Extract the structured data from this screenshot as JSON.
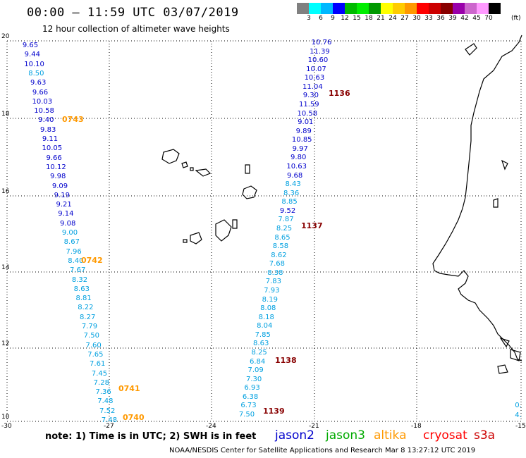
{
  "header": {
    "title": "00:00 – 11:59 UTC 03/07/2019",
    "subtitle": "12 hour collection of altimeter wave heights"
  },
  "colorbar": {
    "colors": [
      "#808080",
      "#00ffff",
      "#00b8ff",
      "#0000ff",
      "#00bb00",
      "#00ee00",
      "#009900",
      "#ffff00",
      "#ffcc00",
      "#ff9900",
      "#ff0000",
      "#cc0000",
      "#880000",
      "#9900aa",
      "#cc66cc",
      "#ff99ff",
      "#000000"
    ],
    "labels": [
      "3",
      "6",
      "9",
      "12",
      "15",
      "18",
      "21",
      "24",
      "27",
      "30",
      "33",
      "36",
      "39",
      "42",
      "45",
      "70"
    ],
    "unit": "(ft)"
  },
  "map": {
    "lon_range": [
      -30,
      -15
    ],
    "lat_range": [
      10,
      20
    ],
    "x_ticks": [
      "-30",
      "-27",
      "-24",
      "-21",
      "-18",
      "-15"
    ],
    "y_ticks": [
      "20",
      "18",
      "16",
      "14",
      "12",
      "10"
    ],
    "grid": true,
    "grid_style": "dotted"
  },
  "satellites": {
    "jason2": "#0000cc",
    "jason3": "#00aa00",
    "altika": "#ff9900",
    "cryosat": "#ff0000",
    "s3a": "#cc0000",
    "pass_western": "#00a0e0",
    "time_altika": "#ff9900",
    "time_s3a": "#880000"
  },
  "tracks": [
    {
      "name": "western",
      "values": [
        {
          "v": "9.65",
          "c": "jason2"
        },
        {
          "v": "9.44",
          "c": "jason2"
        },
        {
          "v": "10.10",
          "c": "jason2"
        },
        {
          "v": "8.50",
          "c": "pass_western"
        },
        {
          "v": "9.63",
          "c": "jason2"
        },
        {
          "v": "9.66",
          "c": "jason2"
        },
        {
          "v": "10.03",
          "c": "jason2"
        },
        {
          "v": "10.58",
          "c": "jason2"
        },
        {
          "v": "9.40",
          "c": "jason2"
        },
        {
          "v": "9.83",
          "c": "jason2"
        },
        {
          "v": "9.11",
          "c": "jason2"
        },
        {
          "v": "10.05",
          "c": "jason2"
        },
        {
          "v": "9.66",
          "c": "jason2"
        },
        {
          "v": "10.12",
          "c": "jason2"
        },
        {
          "v": "9.98",
          "c": "jason2"
        },
        {
          "v": "9.09",
          "c": "jason2"
        },
        {
          "v": "9.19",
          "c": "jason2"
        },
        {
          "v": "9.21",
          "c": "jason2"
        },
        {
          "v": "9.14",
          "c": "jason2"
        },
        {
          "v": "9.08",
          "c": "jason2"
        },
        {
          "v": "9.00",
          "c": "pass_western"
        },
        {
          "v": "8.67",
          "c": "pass_western"
        },
        {
          "v": "7.96",
          "c": "pass_western"
        },
        {
          "v": "8.40",
          "c": "pass_western"
        },
        {
          "v": "7.67",
          "c": "pass_western"
        },
        {
          "v": "8.32",
          "c": "pass_western"
        },
        {
          "v": "8.63",
          "c": "pass_western"
        },
        {
          "v": "8.81",
          "c": "pass_western"
        },
        {
          "v": "8.22",
          "c": "pass_western"
        },
        {
          "v": "8.27",
          "c": "pass_western"
        },
        {
          "v": "7.79",
          "c": "pass_western"
        },
        {
          "v": "7.50",
          "c": "pass_western"
        },
        {
          "v": "7.60",
          "c": "pass_western"
        },
        {
          "v": "7.65",
          "c": "pass_western"
        },
        {
          "v": "7.61",
          "c": "pass_western"
        },
        {
          "v": "7.45",
          "c": "pass_western"
        },
        {
          "v": "7.28",
          "c": "pass_western"
        },
        {
          "v": "7.36",
          "c": "pass_western"
        },
        {
          "v": "7.48",
          "c": "pass_western"
        },
        {
          "v": "7.52",
          "c": "pass_western"
        },
        {
          "v": "7.48",
          "c": "pass_western"
        }
      ],
      "times": [
        {
          "t": "0743",
          "c": "time_altika"
        },
        {
          "t": "0742",
          "c": "time_altika"
        },
        {
          "t": "0741",
          "c": "time_altika"
        },
        {
          "t": "0740",
          "c": "time_altika"
        }
      ]
    },
    {
      "name": "eastern",
      "values": [
        {
          "v": "10.76",
          "c": "jason2"
        },
        {
          "v": "11.39",
          "c": "jason2"
        },
        {
          "v": "10.60",
          "c": "jason2"
        },
        {
          "v": "10.07",
          "c": "jason2"
        },
        {
          "v": "10.63",
          "c": "jason2"
        },
        {
          "v": "11.04",
          "c": "jason2"
        },
        {
          "v": "9.30",
          "c": "jason2"
        },
        {
          "v": "11.59",
          "c": "jason2"
        },
        {
          "v": "10.58",
          "c": "jason2"
        },
        {
          "v": "9.01",
          "c": "jason2"
        },
        {
          "v": "9.89",
          "c": "jason2"
        },
        {
          "v": "10.85",
          "c": "jason2"
        },
        {
          "v": "9.97",
          "c": "jason2"
        },
        {
          "v": "9.80",
          "c": "jason2"
        },
        {
          "v": "10.63",
          "c": "jason2"
        },
        {
          "v": "9.68",
          "c": "jason2"
        },
        {
          "v": "8.43",
          "c": "pass_western"
        },
        {
          "v": "8.36",
          "c": "pass_western"
        },
        {
          "v": "8.85",
          "c": "pass_western"
        },
        {
          "v": "9.52",
          "c": "jason2"
        },
        {
          "v": "7.87",
          "c": "pass_western"
        },
        {
          "v": "8.25",
          "c": "pass_western"
        },
        {
          "v": "8.65",
          "c": "pass_western"
        },
        {
          "v": "8.58",
          "c": "pass_western"
        },
        {
          "v": "8.62",
          "c": "pass_western"
        },
        {
          "v": "7.68",
          "c": "pass_western"
        },
        {
          "v": "8.38",
          "c": "pass_western"
        },
        {
          "v": "7.83",
          "c": "pass_western"
        },
        {
          "v": "7.93",
          "c": "pass_western"
        },
        {
          "v": "8.19",
          "c": "pass_western"
        },
        {
          "v": "8.08",
          "c": "pass_western"
        },
        {
          "v": "8.18",
          "c": "pass_western"
        },
        {
          "v": "8.04",
          "c": "pass_western"
        },
        {
          "v": "7.85",
          "c": "pass_western"
        },
        {
          "v": "8.63",
          "c": "pass_western"
        },
        {
          "v": "8.25",
          "c": "pass_western"
        },
        {
          "v": "6.84",
          "c": "pass_western"
        },
        {
          "v": "7.09",
          "c": "pass_western"
        },
        {
          "v": "7.30",
          "c": "pass_western"
        },
        {
          "v": "6.93",
          "c": "pass_western"
        },
        {
          "v": "6.38",
          "c": "pass_western"
        },
        {
          "v": "6.73",
          "c": "pass_western"
        },
        {
          "v": "7.50",
          "c": "pass_western"
        }
      ],
      "times": [
        {
          "t": "1136",
          "c": "time_s3a"
        },
        {
          "t": "1137",
          "c": "time_s3a"
        },
        {
          "t": "1138",
          "c": "time_s3a"
        },
        {
          "t": "1139",
          "c": "time_s3a"
        }
      ]
    },
    {
      "name": "edge",
      "values": [
        {
          "v": "0.",
          "c": "pass_western"
        },
        {
          "v": "4.",
          "c": "pass_western"
        }
      ],
      "times": []
    }
  ],
  "note": "note:  1) Time is in UTC;  2) SWH is in feet",
  "legend": [
    {
      "label": "jason2",
      "key": "jason2"
    },
    {
      "label": "jason3",
      "key": "jason3"
    },
    {
      "label": "altika",
      "key": "altika"
    },
    {
      "label": "cryosat",
      "key": "cryosat"
    },
    {
      "label": "s3a",
      "key": "s3a"
    }
  ],
  "footer": "NOAA/NESDIS Center for Satellite Applications and Research    Mar  8 13:27:12 UTC 2019"
}
